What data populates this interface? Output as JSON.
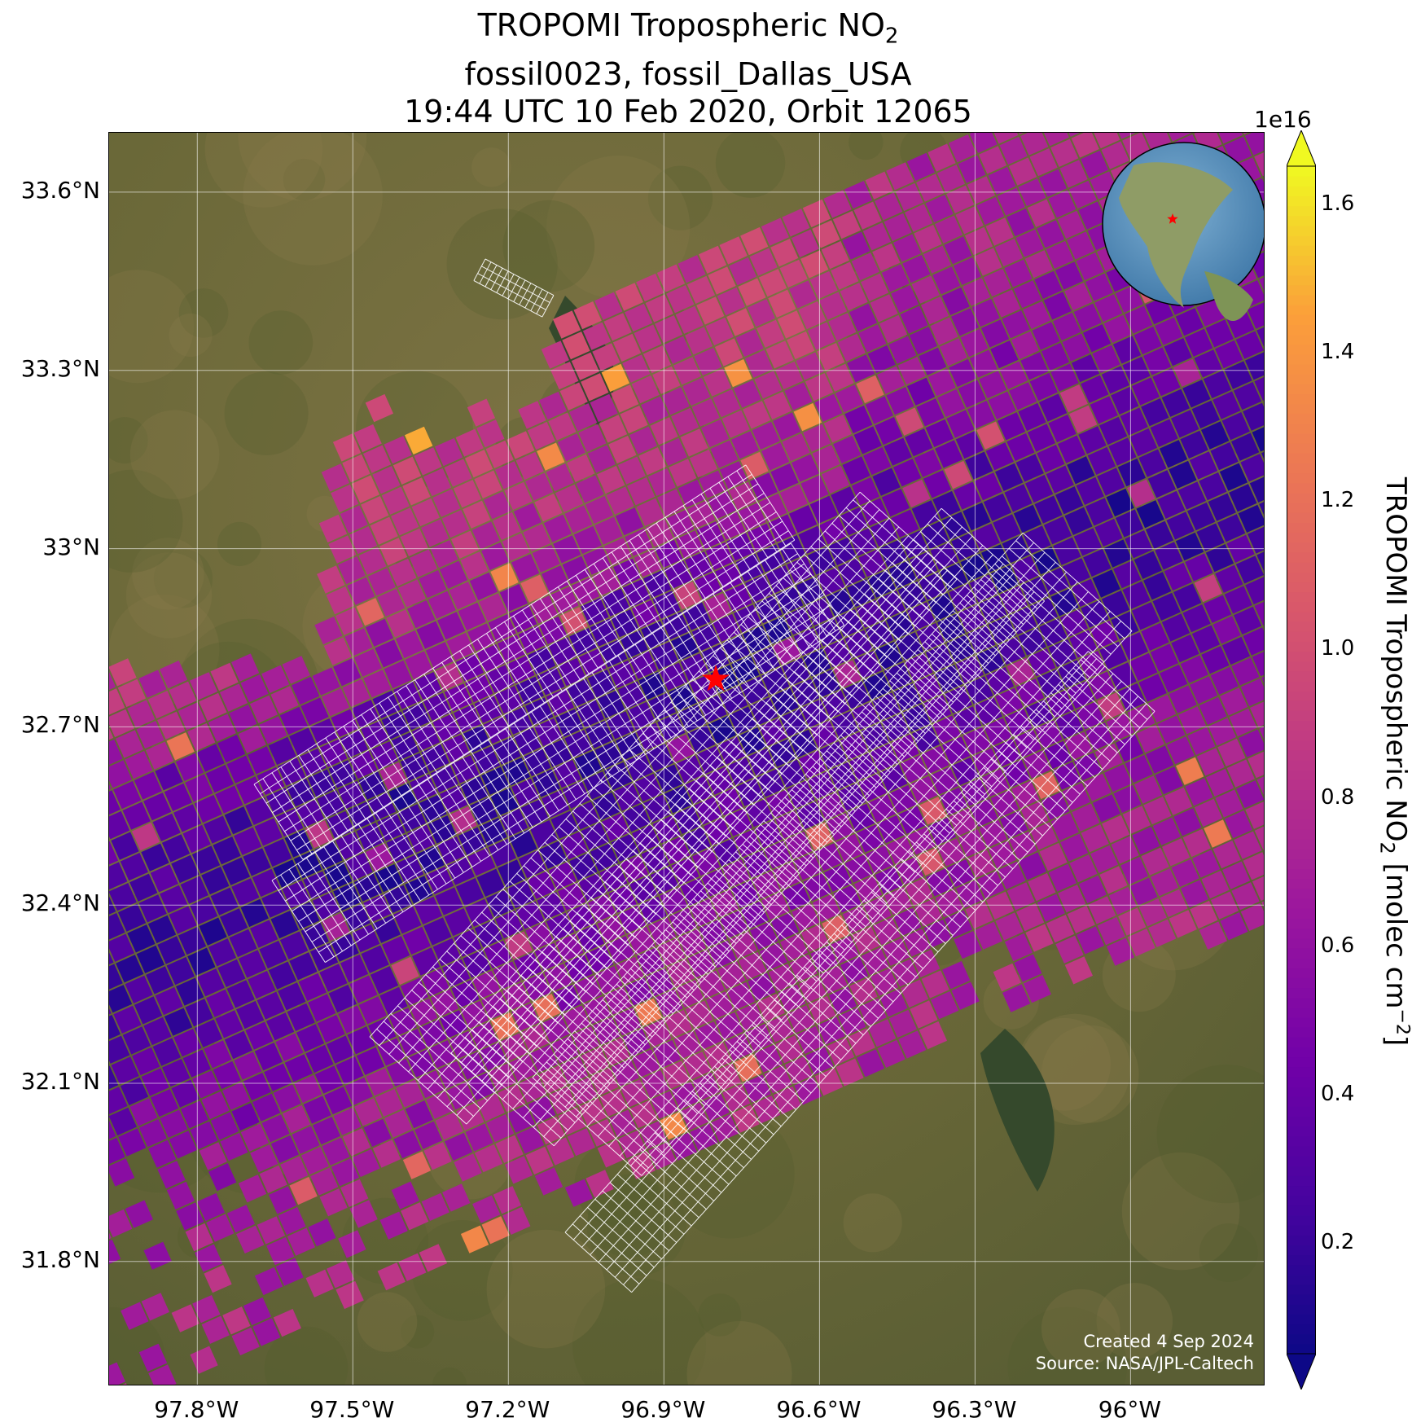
{
  "title": {
    "line1_prefix": "TROPOMI Tropospheric NO",
    "line1_subscript": "2",
    "line2": "fossil0023, fossil_Dallas_USA",
    "line3": "19:44 UTC 10 Feb 2020, Orbit 12065"
  },
  "map": {
    "extent": {
      "lon_min": -97.97,
      "lon_max": -95.74,
      "lat_min": 31.59,
      "lat_max": 33.7
    },
    "target_site": {
      "lon": -96.8,
      "lat": 32.78,
      "marker": "red-star-icon",
      "color": "#ff0000"
    },
    "lat_ticks": [
      {
        "value": 33.6,
        "label": "33.6°N"
      },
      {
        "value": 33.3,
        "label": "33.3°N"
      },
      {
        "value": 33.0,
        "label": "33°N"
      },
      {
        "value": 32.7,
        "label": "32.7°N"
      },
      {
        "value": 32.4,
        "label": "32.4°N"
      },
      {
        "value": 32.1,
        "label": "32.1°N"
      },
      {
        "value": 31.8,
        "label": "31.8°N"
      }
    ],
    "lon_ticks": [
      {
        "value": -97.8,
        "label": "97.8°W"
      },
      {
        "value": -97.5,
        "label": "97.5°W"
      },
      {
        "value": -97.2,
        "label": "97.2°W"
      },
      {
        "value": -96.9,
        "label": "96.9°W"
      },
      {
        "value": -96.6,
        "label": "96.6°W"
      },
      {
        "value": -96.3,
        "label": "96.3°W"
      },
      {
        "value": -96.0,
        "label": "96°W"
      }
    ],
    "gridlines": true,
    "basemap": "satellite imagery",
    "inset_globe": {
      "position": "top-right",
      "icon": "globe-icon",
      "marker_color": "#ff0000"
    },
    "footprint_grid_color": "#ffffff",
    "credits": {
      "line1": "Created 4 Sep 2024",
      "line2": "Source: NASA/JPL-Caltech"
    }
  },
  "colorbar": {
    "colormap": "plasma",
    "exponent_label": "1e16",
    "min": 0.05,
    "max": 1.65,
    "extend": "both",
    "ticks": [
      {
        "value": 0.2,
        "label": "0.2"
      },
      {
        "value": 0.4,
        "label": "0.4"
      },
      {
        "value": 0.6,
        "label": "0.6"
      },
      {
        "value": 0.8,
        "label": "0.8"
      },
      {
        "value": 1.0,
        "label": "1.0"
      },
      {
        "value": 1.2,
        "label": "1.2"
      },
      {
        "value": 1.4,
        "label": "1.4"
      },
      {
        "value": 1.6,
        "label": "1.6"
      }
    ],
    "label_prefix": "TROPOMI Tropospheric NO",
    "label_subscript": "2",
    "label_units_prefix": " [molec cm",
    "label_superscript": "−2",
    "label_suffix": "]"
  }
}
